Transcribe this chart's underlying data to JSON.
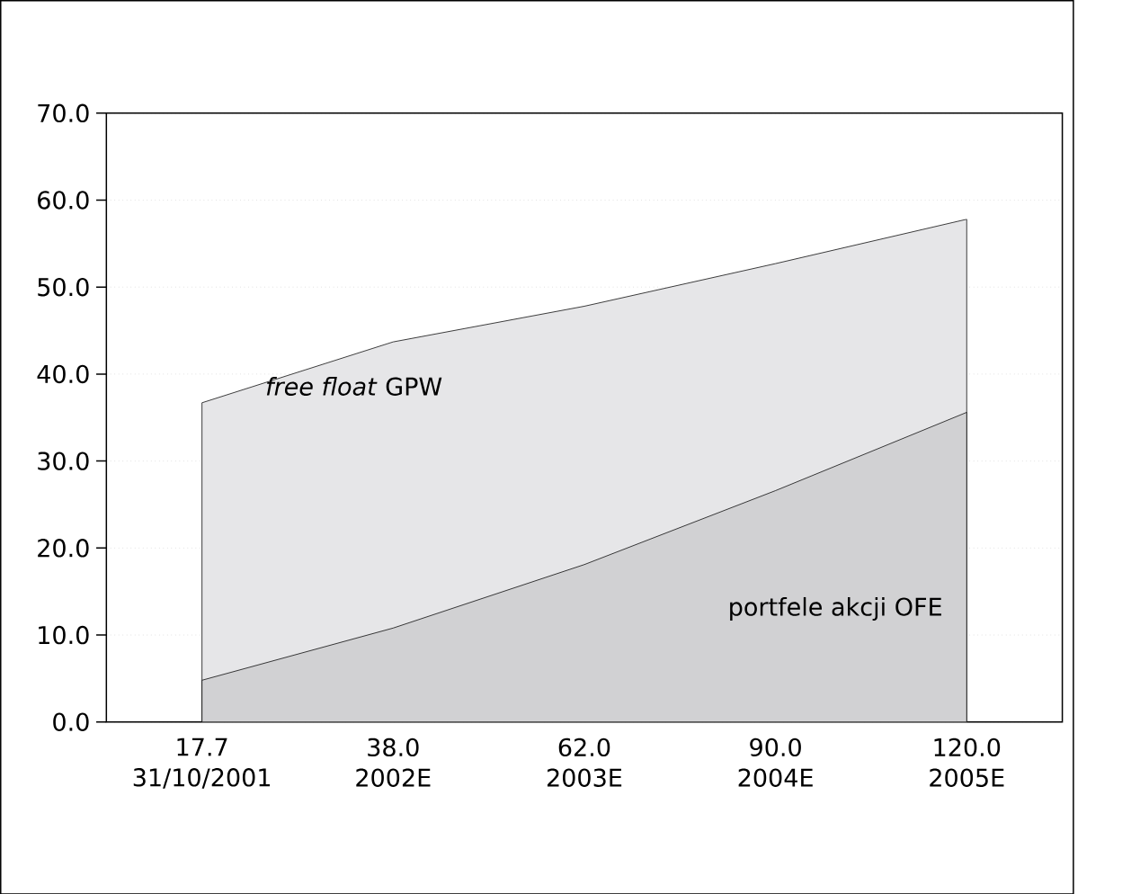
{
  "chart_data": {
    "type": "area",
    "categories": [
      "17.7 31/10/2001",
      "38.0 2002E",
      "62.0 2003E",
      "90.0 2004E",
      "120.0 2005E"
    ],
    "series": [
      {
        "name": "*free float* GPW",
        "color": "#e6e6e8",
        "values": [
          36.7,
          43.7,
          47.8,
          52.7,
          57.8
        ]
      },
      {
        "name": "portfele akcji OFE",
        "color": "#d1d1d3",
        "values": [
          4.8,
          10.8,
          18.1,
          26.6,
          35.6
        ]
      }
    ],
    "ylim": [
      0,
      70
    ],
    "yticks": [
      {
        "value": 0,
        "label": "0.0"
      },
      {
        "value": 10,
        "label": "10.0"
      },
      {
        "value": 20,
        "label": "20.0"
      },
      {
        "value": 30,
        "label": "30.0"
      },
      {
        "value": 40,
        "label": "40.0"
      },
      {
        "value": 50,
        "label": "50.0"
      },
      {
        "value": 60,
        "label": "60.0"
      },
      {
        "value": 70,
        "label": "70.0"
      }
    ],
    "grid": "y"
  }
}
